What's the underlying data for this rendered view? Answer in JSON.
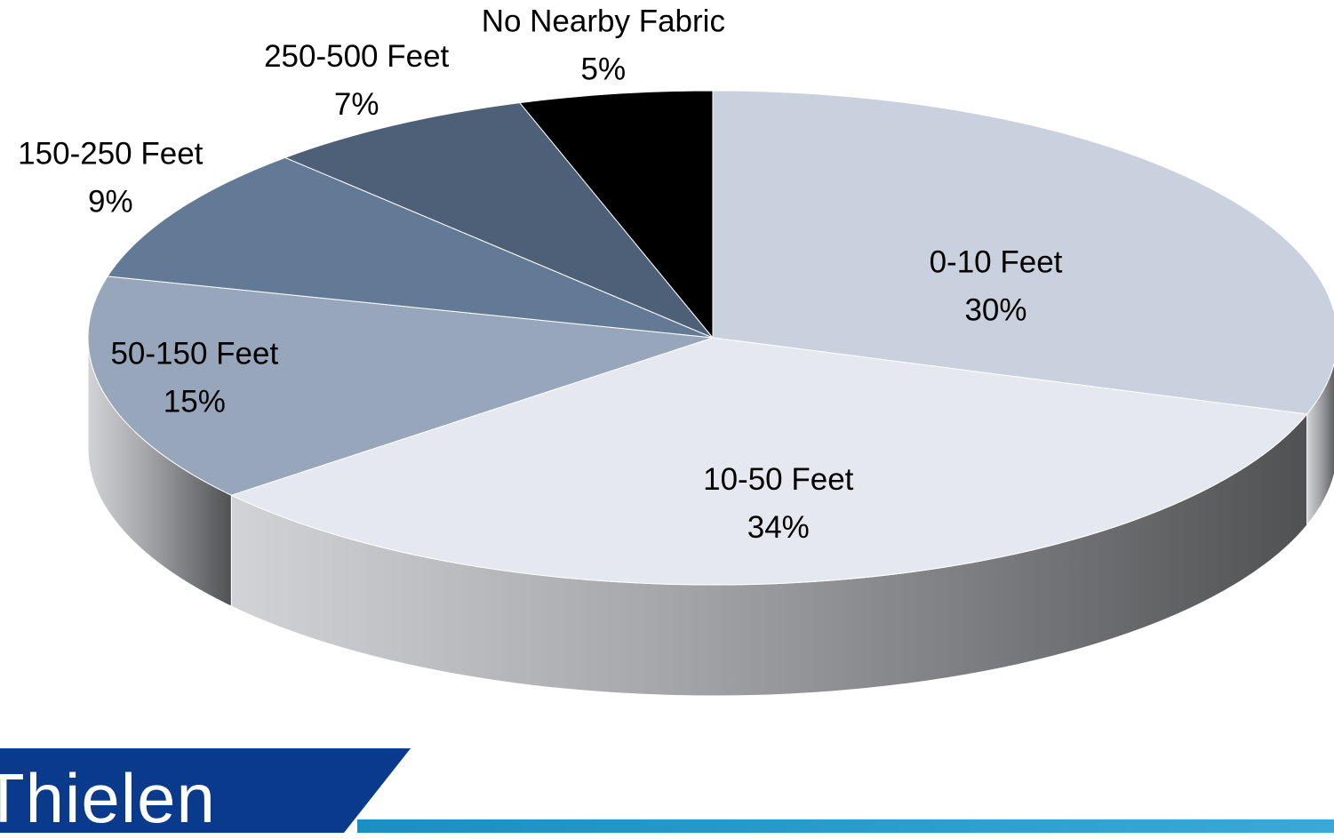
{
  "chart_data": {
    "type": "pie",
    "style": "3d",
    "slices": [
      {
        "label": "0-10 Feet",
        "value": 30,
        "value_label": "30%",
        "color": "#C8D1DD"
      },
      {
        "label": "10-50 Feet",
        "value": 34,
        "value_label": "34%",
        "color": "#E5E9EF"
      },
      {
        "label": "50-150 Feet",
        "value": 15,
        "value_label": "15%",
        "color": "#97A6BB"
      },
      {
        "label": "150-250 Feet",
        "value": 9,
        "value_label": "9%",
        "color": "#637A96"
      },
      {
        "label": "250-500 Feet",
        "value": 7,
        "value_label": "7%",
        "color": "#4E5F78"
      },
      {
        "label": "No Nearby Fabric",
        "value": 5,
        "value_label": "5%",
        "color": "#000000"
      }
    ]
  },
  "branding": {
    "logo_text": "Thielen",
    "colors": {
      "navy": "#0A3A8C",
      "teal": "#1B8FC0"
    }
  }
}
